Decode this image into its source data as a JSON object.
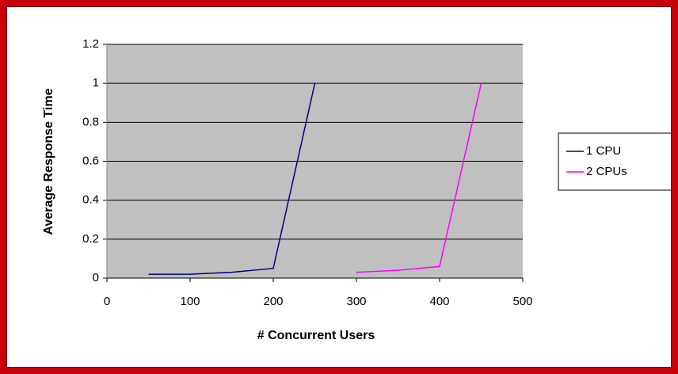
{
  "chart_data": {
    "type": "line",
    "x_label": "# Concurrent Users",
    "y_label": "Average Response Time",
    "series": [
      {
        "name": "1 CPU",
        "color": "#000080",
        "x": [
          50,
          100,
          150,
          200,
          250
        ],
        "values": [
          0.02,
          0.02,
          0.03,
          0.05,
          1
        ]
      },
      {
        "name": "2 CPUs",
        "color": "#ff00ff",
        "x": [
          300,
          350,
          400,
          450
        ],
        "values": [
          0.03,
          0.04,
          0.06,
          1
        ]
      }
    ],
    "xlim": [
      0,
      500
    ],
    "xticks": [
      0,
      100,
      200,
      300,
      400,
      500
    ],
    "ylim": [
      0,
      1.2
    ],
    "yticks": [
      0,
      0.2,
      0.4,
      0.6,
      0.8,
      1,
      1.2
    ],
    "grid": true,
    "plot_background": "#c0c0c0",
    "legend": "right"
  }
}
